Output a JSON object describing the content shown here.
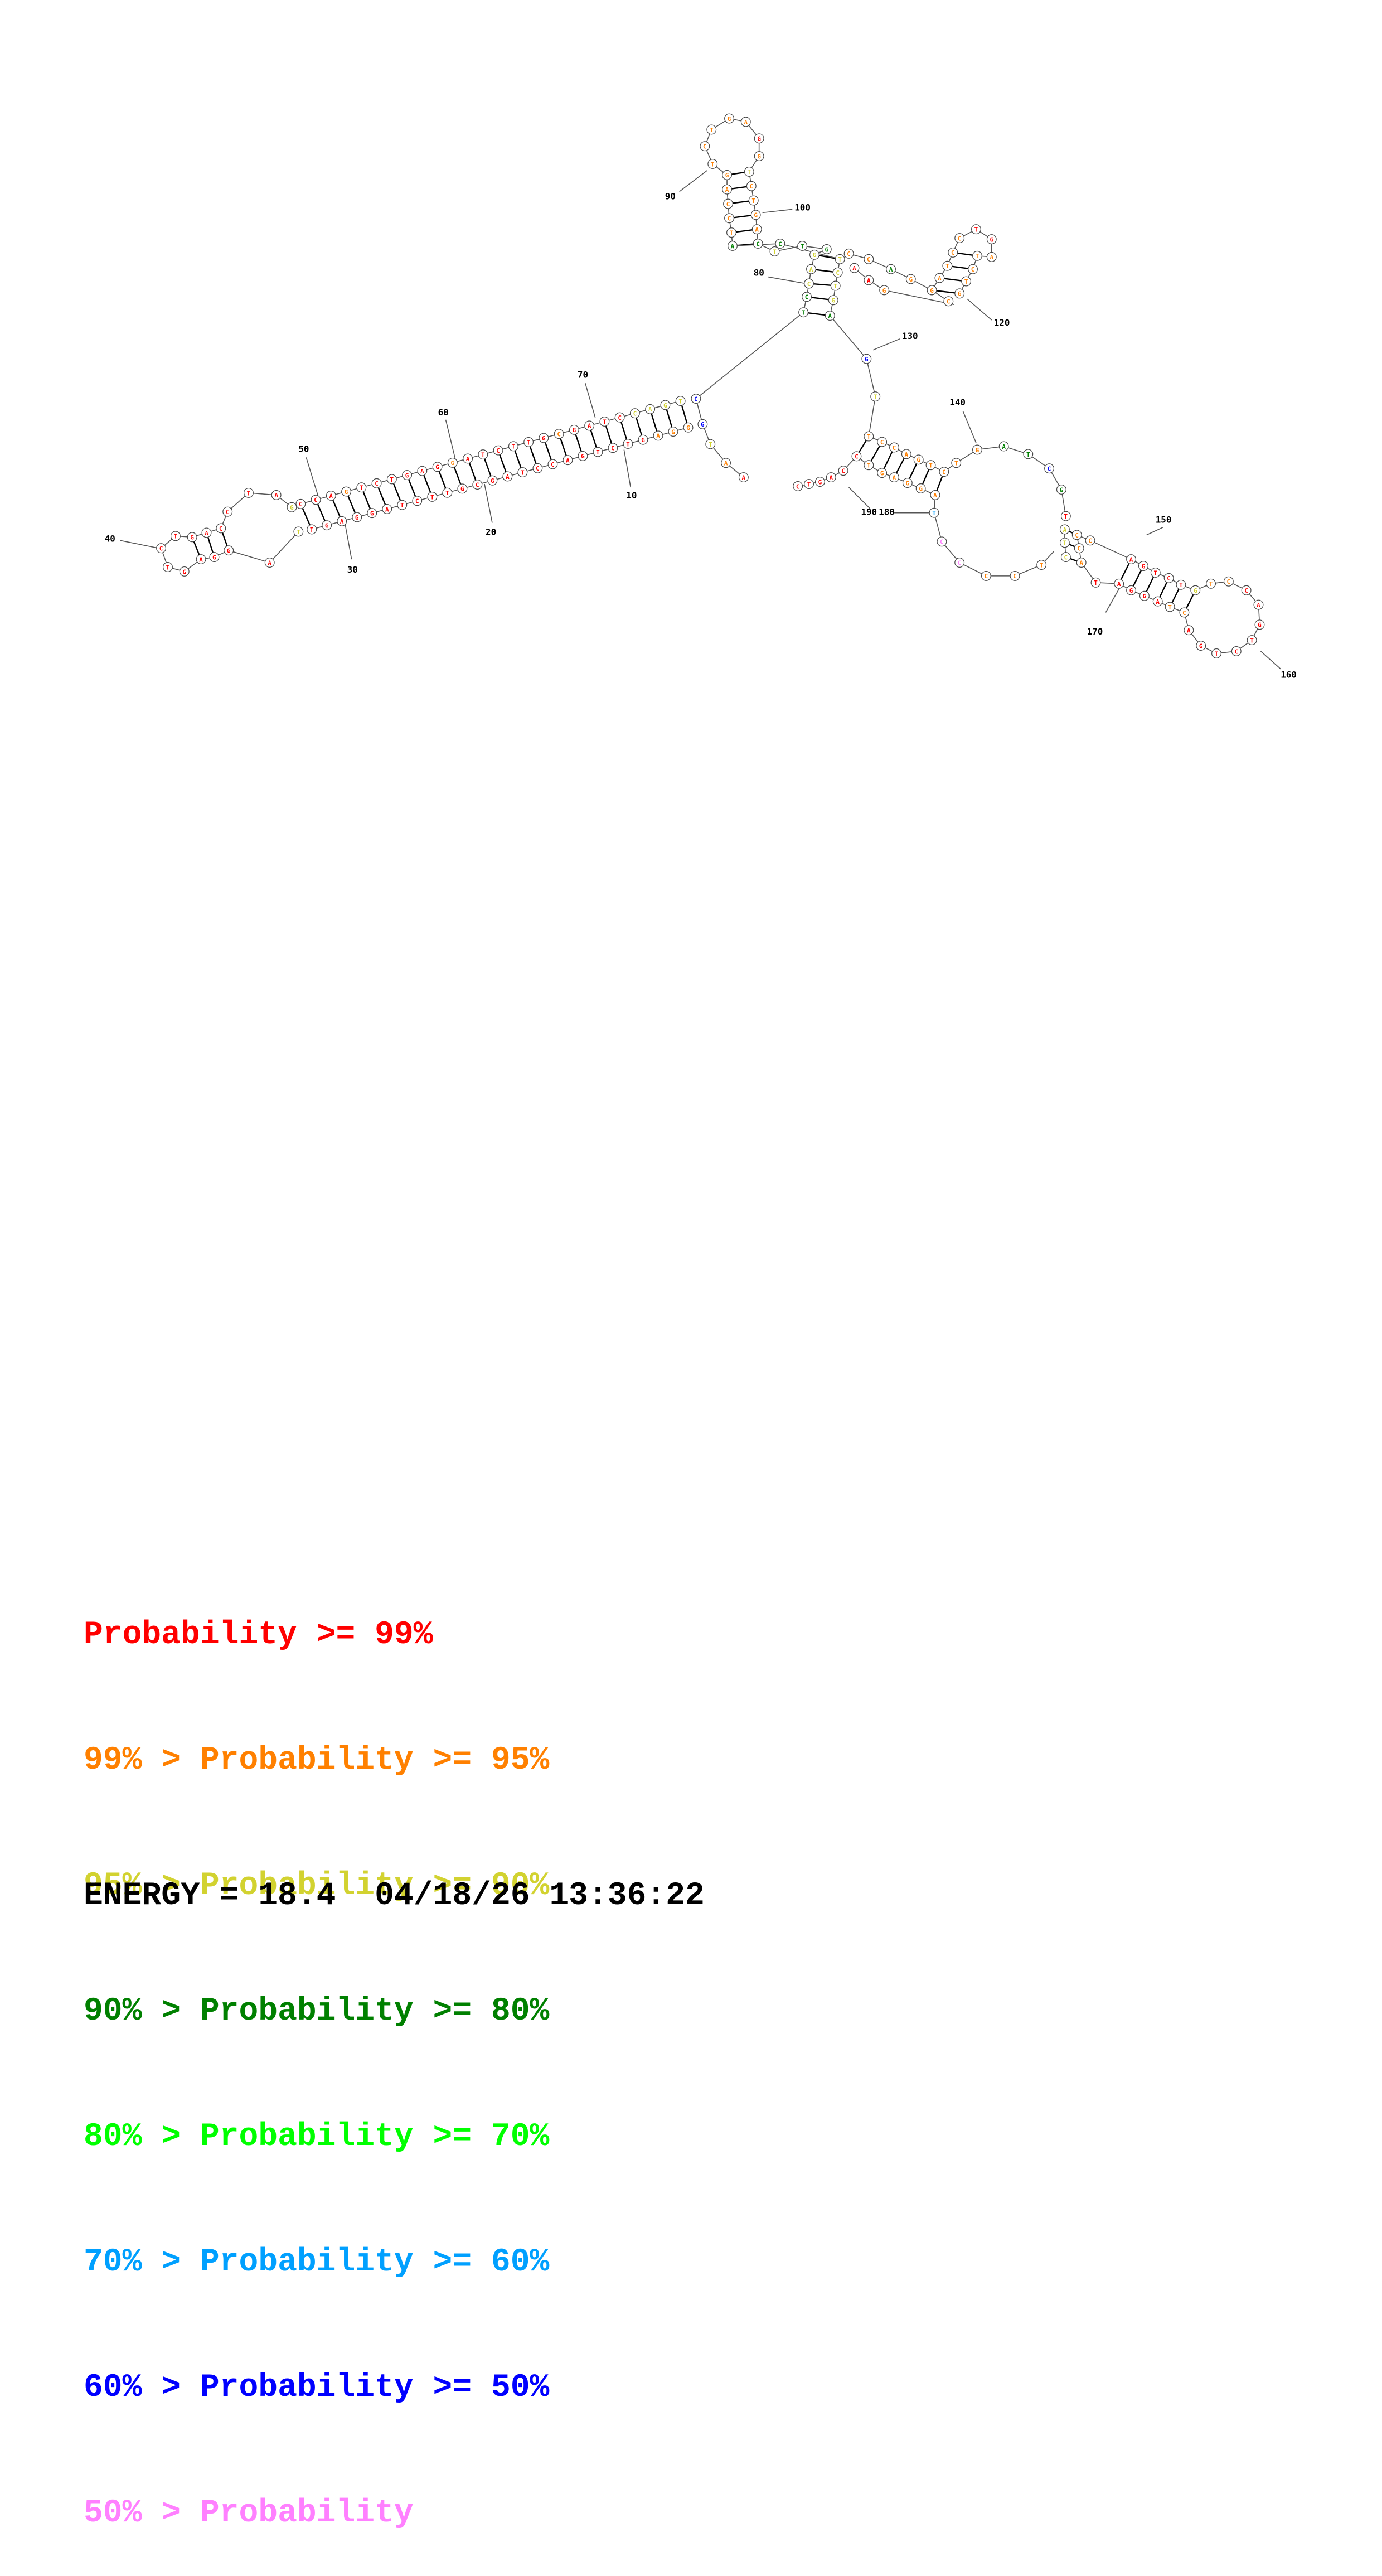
{
  "colors": {
    "p99": "#ff0000",
    "p95": "#ff8000",
    "p90": "#d2d230",
    "p80": "#008000",
    "p70": "#00ff00",
    "p60": "#00a0ff",
    "p50": "#0000ff",
    "plow": "#ff80ff"
  },
  "diagram": {
    "position_labels": [
      "10",
      "20",
      "30",
      "40",
      "50",
      "60",
      "70",
      "80",
      "90",
      "100",
      "120",
      "130",
      "140",
      "150",
      "160",
      "170",
      "180",
      "190"
    ]
  },
  "legend": [
    {
      "left": "",
      "right": "Probability >= 99%",
      "color_key": "p99"
    },
    {
      "left": "99% > ",
      "right": "Probability >= 95%",
      "color_key": "p95"
    },
    {
      "left": "95% > ",
      "right": "Probability >= 90%",
      "color_key": "p90"
    },
    {
      "left": "90% > ",
      "right": "Probability >= 80%",
      "color_key": "p80"
    },
    {
      "left": "80% > ",
      "right": "Probability >= 70%",
      "color_key": "p70"
    },
    {
      "left": "70% > ",
      "right": "Probability >= 60%",
      "color_key": "p60"
    },
    {
      "left": "60% > ",
      "right": "Probability >= 50%",
      "color_key": "p50"
    },
    {
      "left": "50% > ",
      "right": "Probability",
      "color_key": "plow"
    }
  ],
  "footer": {
    "energy": "ENERGY = 18.4",
    "timestamp": "04/18/26 13:36:22"
  }
}
